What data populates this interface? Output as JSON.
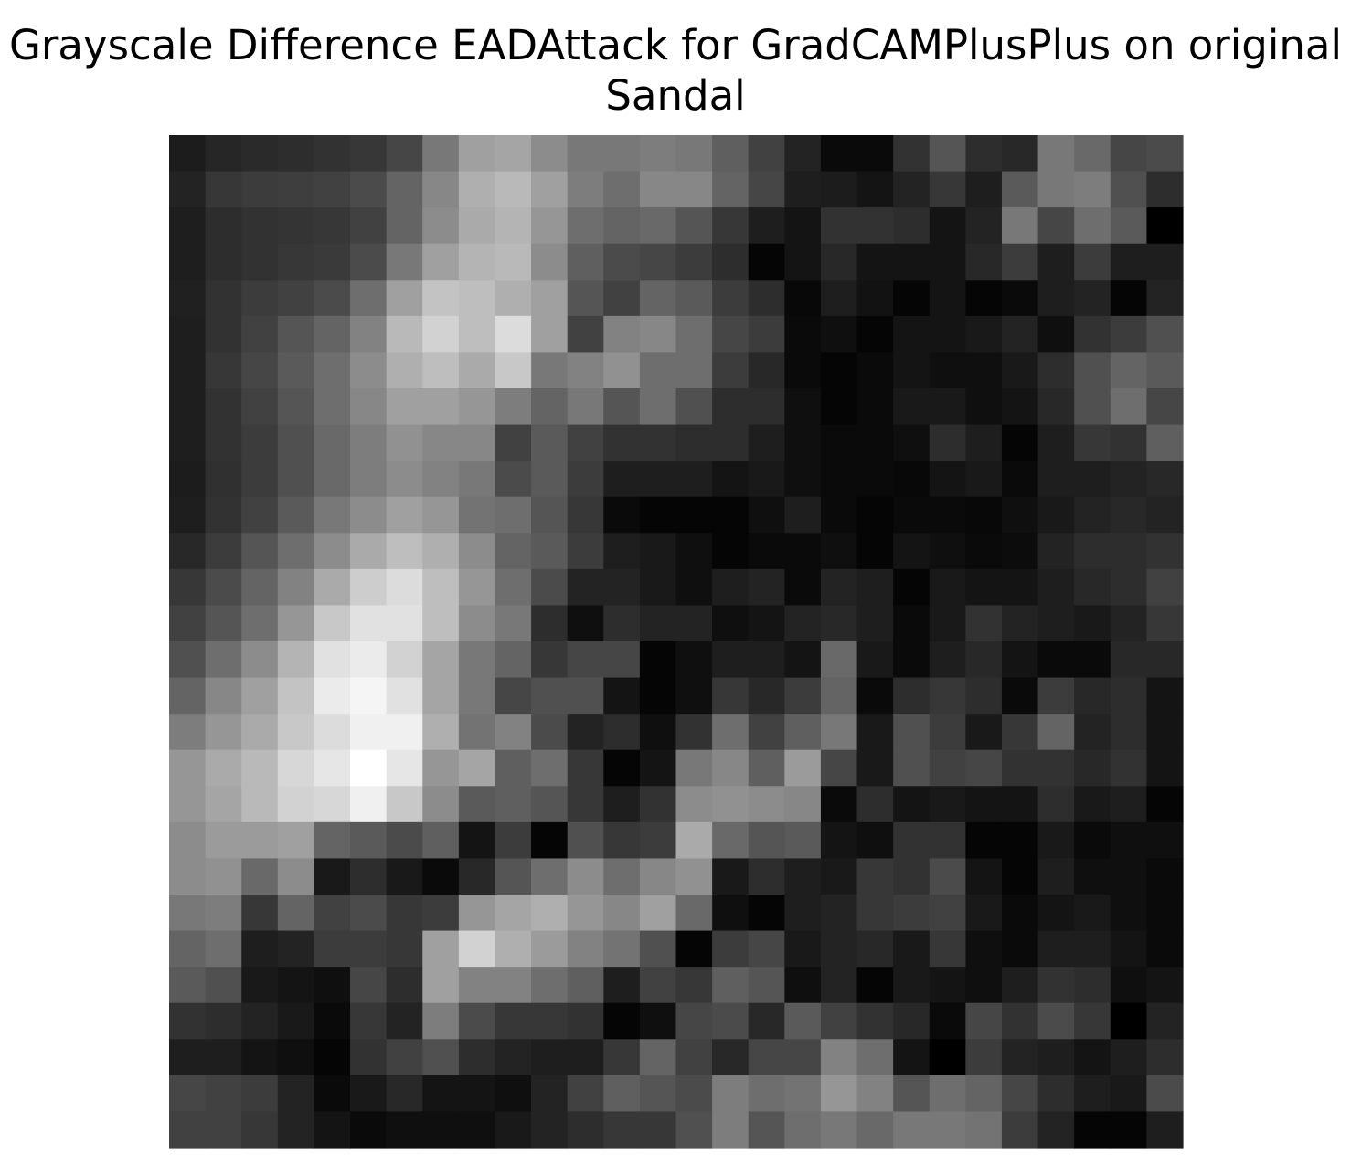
{
  "chart_data": {
    "type": "heatmap",
    "colormap": "gray",
    "title": "Grayscale Difference EADAttack for GradCAMPlusPlus on original Sandal",
    "z": [
      [
        28,
        38,
        42,
        45,
        50,
        55,
        70,
        120,
        160,
        165,
        140,
        120,
        120,
        125,
        120,
        95,
        65,
        35,
        10,
        10,
        50,
        85,
        45,
        40,
        120,
        105,
        70,
        75
      ],
      [
        35,
        55,
        60,
        62,
        65,
        75,
        100,
        135,
        175,
        185,
        160,
        125,
        110,
        135,
        135,
        100,
        70,
        30,
        28,
        20,
        35,
        55,
        30,
        90,
        120,
        125,
        80,
        45
      ],
      [
        30,
        45,
        50,
        52,
        55,
        65,
        100,
        140,
        170,
        180,
        150,
        110,
        100,
        105,
        85,
        55,
        30,
        20,
        50,
        50,
        45,
        20,
        35,
        120,
        70,
        110,
        90,
        0
      ],
      [
        30,
        45,
        50,
        55,
        58,
        75,
        120,
        160,
        180,
        185,
        140,
        95,
        75,
        70,
        60,
        45,
        5,
        20,
        40,
        20,
        20,
        20,
        40,
        60,
        30,
        60,
        30,
        30
      ],
      [
        32,
        50,
        60,
        65,
        75,
        110,
        160,
        195,
        190,
        175,
        160,
        85,
        65,
        100,
        90,
        60,
        45,
        8,
        30,
        18,
        5,
        20,
        5,
        10,
        30,
        35,
        5,
        35
      ],
      [
        30,
        50,
        65,
        85,
        100,
        130,
        185,
        210,
        190,
        220,
        160,
        65,
        130,
        135,
        110,
        70,
        60,
        10,
        15,
        5,
        20,
        20,
        25,
        35,
        15,
        50,
        60,
        80
      ],
      [
        30,
        55,
        70,
        90,
        110,
        140,
        175,
        190,
        170,
        200,
        120,
        130,
        145,
        110,
        110,
        60,
        40,
        10,
        5,
        10,
        20,
        15,
        15,
        25,
        45,
        80,
        100,
        90
      ],
      [
        30,
        50,
        65,
        85,
        110,
        135,
        160,
        160,
        150,
        125,
        100,
        120,
        85,
        110,
        80,
        45,
        45,
        15,
        5,
        10,
        25,
        25,
        15,
        20,
        40,
        80,
        110,
        70
      ],
      [
        30,
        50,
        60,
        80,
        105,
        125,
        145,
        135,
        135,
        65,
        90,
        65,
        50,
        50,
        45,
        45,
        30,
        15,
        10,
        10,
        15,
        45,
        30,
        5,
        30,
        55,
        50,
        95
      ],
      [
        28,
        48,
        60,
        80,
        105,
        125,
        140,
        130,
        120,
        75,
        90,
        60,
        30,
        30,
        30,
        20,
        25,
        15,
        10,
        10,
        8,
        20,
        25,
        10,
        30,
        30,
        35,
        40
      ],
      [
        30,
        50,
        65,
        90,
        120,
        140,
        160,
        150,
        115,
        110,
        85,
        55,
        10,
        5,
        5,
        5,
        15,
        30,
        10,
        5,
        10,
        10,
        8,
        15,
        25,
        35,
        40,
        35
      ],
      [
        40,
        60,
        85,
        110,
        140,
        170,
        190,
        175,
        140,
        100,
        90,
        60,
        30,
        25,
        15,
        5,
        10,
        10,
        15,
        5,
        20,
        15,
        10,
        12,
        35,
        45,
        45,
        50
      ],
      [
        55,
        75,
        100,
        130,
        170,
        205,
        220,
        190,
        150,
        110,
        75,
        35,
        35,
        25,
        15,
        30,
        35,
        10,
        35,
        30,
        5,
        25,
        20,
        20,
        30,
        40,
        45,
        65
      ],
      [
        65,
        85,
        110,
        150,
        200,
        225,
        225,
        190,
        140,
        120,
        45,
        15,
        45,
        35,
        35,
        15,
        20,
        35,
        40,
        30,
        10,
        25,
        50,
        35,
        30,
        25,
        35,
        55
      ],
      [
        80,
        110,
        140,
        180,
        225,
        235,
        210,
        165,
        120,
        100,
        55,
        70,
        70,
        5,
        15,
        30,
        30,
        20,
        105,
        25,
        10,
        30,
        40,
        20,
        10,
        10,
        40,
        40
      ],
      [
        100,
        135,
        160,
        195,
        235,
        245,
        225,
        165,
        120,
        70,
        80,
        80,
        20,
        5,
        15,
        55,
        40,
        60,
        100,
        10,
        45,
        55,
        45,
        10,
        60,
        40,
        45,
        20
      ],
      [
        125,
        150,
        170,
        200,
        220,
        240,
        240,
        175,
        115,
        130,
        75,
        35,
        45,
        15,
        50,
        110,
        65,
        95,
        120,
        25,
        80,
        60,
        25,
        55,
        100,
        35,
        45,
        20
      ],
      [
        150,
        170,
        185,
        215,
        230,
        255,
        230,
        150,
        165,
        95,
        110,
        55,
        5,
        20,
        120,
        135,
        95,
        155,
        70,
        25,
        80,
        65,
        70,
        50,
        50,
        40,
        50,
        20
      ],
      [
        150,
        165,
        185,
        210,
        215,
        240,
        200,
        140,
        90,
        95,
        85,
        55,
        30,
        50,
        140,
        145,
        140,
        135,
        10,
        45,
        20,
        25,
        20,
        20,
        45,
        25,
        30,
        5
      ],
      [
        140,
        155,
        155,
        160,
        100,
        90,
        75,
        95,
        20,
        60,
        5,
        80,
        55,
        60,
        170,
        105,
        85,
        90,
        20,
        15,
        50,
        50,
        5,
        5,
        25,
        10,
        15,
        15
      ],
      [
        140,
        145,
        105,
        140,
        25,
        45,
        25,
        10,
        40,
        85,
        110,
        140,
        110,
        135,
        145,
        25,
        45,
        30,
        25,
        55,
        50,
        75,
        20,
        5,
        30,
        15,
        15,
        10
      ],
      [
        120,
        125,
        55,
        100,
        65,
        75,
        55,
        60,
        150,
        165,
        175,
        150,
        135,
        160,
        105,
        15,
        5,
        30,
        35,
        55,
        60,
        65,
        25,
        10,
        20,
        25,
        15,
        10
      ],
      [
        100,
        110,
        30,
        35,
        60,
        60,
        55,
        160,
        210,
        175,
        155,
        130,
        115,
        80,
        5,
        60,
        70,
        25,
        35,
        40,
        25,
        55,
        15,
        10,
        30,
        30,
        20,
        10
      ],
      [
        90,
        80,
        25,
        20,
        15,
        70,
        45,
        160,
        130,
        130,
        110,
        95,
        30,
        65,
        55,
        95,
        85,
        15,
        35,
        5,
        25,
        20,
        15,
        30,
        50,
        45,
        15,
        20
      ],
      [
        50,
        45,
        35,
        25,
        10,
        55,
        35,
        125,
        75,
        55,
        55,
        50,
        5,
        15,
        70,
        75,
        40,
        90,
        65,
        50,
        40,
        10,
        70,
        50,
        75,
        55,
        0,
        35
      ],
      [
        30,
        30,
        20,
        15,
        5,
        50,
        65,
        80,
        45,
        35,
        30,
        30,
        55,
        100,
        65,
        40,
        70,
        70,
        130,
        110,
        20,
        0,
        60,
        35,
        30,
        20,
        30,
        45
      ],
      [
        70,
        65,
        60,
        35,
        10,
        25,
        40,
        20,
        20,
        15,
        35,
        65,
        95,
        85,
        75,
        125,
        110,
        115,
        150,
        130,
        85,
        110,
        100,
        70,
        45,
        30,
        25,
        75
      ],
      [
        65,
        65,
        55,
        35,
        20,
        10,
        15,
        15,
        15,
        25,
        35,
        45,
        55,
        55,
        80,
        125,
        85,
        110,
        120,
        105,
        120,
        120,
        115,
        60,
        35,
        5,
        5,
        30
      ]
    ]
  }
}
